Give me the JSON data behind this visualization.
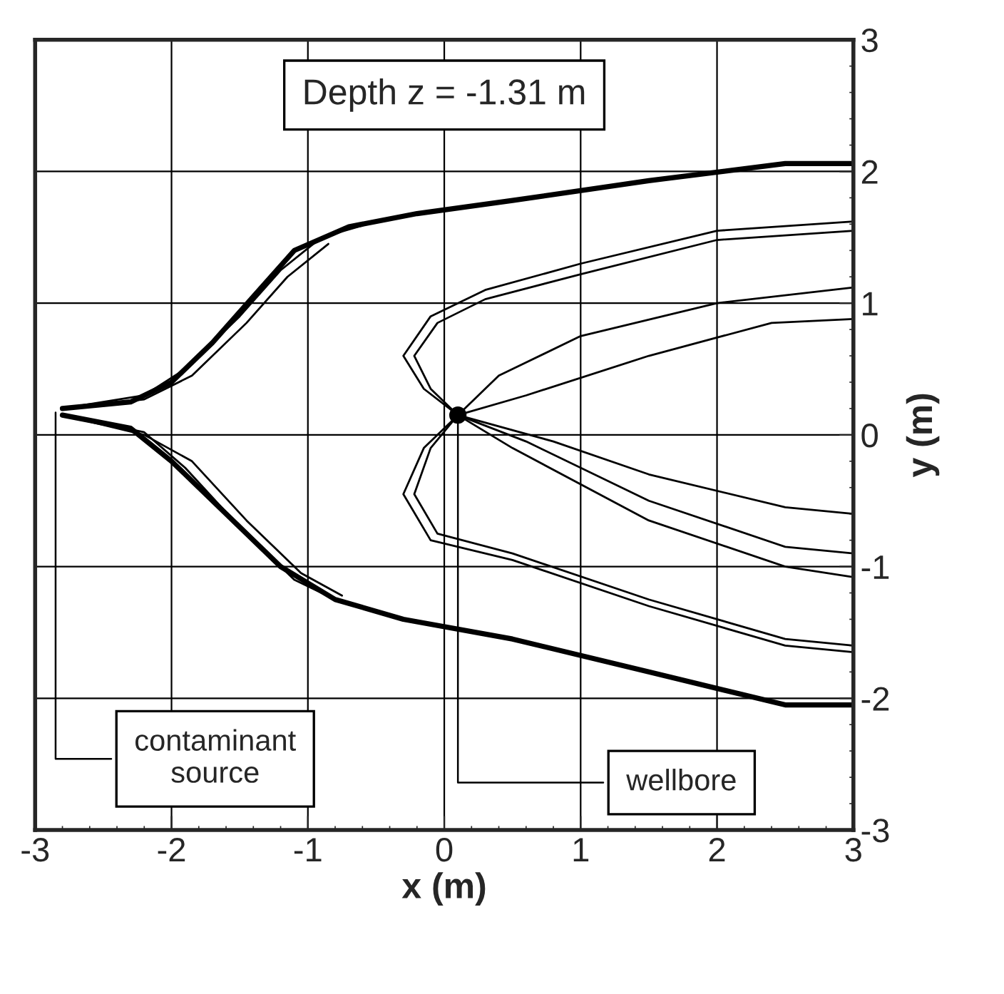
{
  "chart_data": {
    "type": "line",
    "xlabel": "x (m)",
    "ylabel": "y (m)",
    "xlim": [
      -3,
      3
    ],
    "ylim": [
      -3,
      3
    ],
    "xticks": [
      -3,
      -2,
      -1,
      0,
      1,
      2,
      3
    ],
    "yticks": [
      -3,
      -2,
      -1,
      0,
      1,
      2,
      3
    ],
    "grid": true,
    "legend": false,
    "marker": "none",
    "line_style": "solid",
    "series": [
      {
        "color": "#000000",
        "x": [
          -2.8,
          -2.3,
          -2.0,
          -1.7,
          -1.4,
          -1.1,
          -0.7,
          -0.2,
          0.5,
          1.5,
          2.5,
          3.0
        ],
        "values": [
          0.2,
          0.25,
          0.4,
          0.7,
          1.05,
          1.4,
          1.58,
          1.68,
          1.78,
          1.93,
          2.06,
          2.06
        ]
      },
      {
        "color": "#000000",
        "x": [
          -2.8,
          -2.3,
          -2.0,
          -1.6,
          -1.2,
          -0.8,
          -0.3,
          0.5,
          1.5,
          2.5,
          3.0
        ],
        "values": [
          0.15,
          0.05,
          -0.2,
          -0.6,
          -1.0,
          -1.25,
          -1.4,
          -1.55,
          -1.8,
          -2.05,
          -2.05
        ]
      },
      {
        "color": "#000000",
        "x": [
          -2.8,
          -2.2,
          -1.9,
          -1.5,
          -1.2,
          -0.9,
          -0.5
        ],
        "values": [
          0.2,
          0.3,
          0.5,
          0.9,
          1.25,
          1.5,
          1.62
        ]
      },
      {
        "color": "#000000",
        "x": [
          -2.8,
          -2.2,
          -1.85,
          -1.45,
          -1.15,
          -0.85
        ],
        "values": [
          0.2,
          0.27,
          0.45,
          0.85,
          1.2,
          1.45
        ]
      },
      {
        "color": "#000000",
        "x": [
          -2.8,
          -2.2,
          -1.9,
          -1.5,
          -1.1,
          -0.8
        ],
        "values": [
          0.15,
          0.02,
          -0.25,
          -0.7,
          -1.1,
          -1.25
        ]
      },
      {
        "color": "#000000",
        "x": [
          -2.8,
          -2.2,
          -1.85,
          -1.45,
          -1.05,
          -0.75
        ],
        "values": [
          0.15,
          0.0,
          -0.2,
          -0.65,
          -1.05,
          -1.22
        ]
      },
      {
        "color": "#000000",
        "x": [
          3.0,
          2.0,
          1.0,
          0.3,
          -0.1,
          -0.3,
          -0.15,
          0.1
        ],
        "values": [
          1.62,
          1.55,
          1.3,
          1.1,
          0.9,
          0.6,
          0.35,
          0.15
        ]
      },
      {
        "color": "#000000",
        "x": [
          3.0,
          2.0,
          1.0,
          0.3,
          -0.05,
          -0.22,
          -0.1,
          0.1
        ],
        "values": [
          1.55,
          1.48,
          1.22,
          1.03,
          0.85,
          0.6,
          0.35,
          0.15
        ]
      },
      {
        "color": "#000000",
        "x": [
          0.1,
          0.4,
          1.0,
          2.0,
          3.0
        ],
        "values": [
          0.15,
          0.45,
          0.75,
          1.0,
          1.12
        ]
      },
      {
        "color": "#000000",
        "x": [
          0.1,
          0.6,
          1.5,
          2.4,
          3.0
        ],
        "values": [
          0.15,
          0.3,
          0.6,
          0.85,
          0.88
        ]
      },
      {
        "color": "#000000",
        "x": [
          0.1,
          0.8,
          1.5,
          2.5,
          3.0
        ],
        "values": [
          0.15,
          -0.05,
          -0.3,
          -0.55,
          -0.6
        ]
      },
      {
        "color": "#000000",
        "x": [
          0.1,
          0.6,
          1.5,
          2.5,
          3.0
        ],
        "values": [
          0.15,
          -0.05,
          -0.5,
          -0.85,
          -0.9
        ]
      },
      {
        "color": "#000000",
        "x": [
          0.1,
          0.5,
          1.5,
          2.5,
          3.0
        ],
        "values": [
          0.15,
          -0.1,
          -0.65,
          -1.0,
          -1.08
        ]
      },
      {
        "color": "#000000",
        "x": [
          0.1,
          -0.15,
          -0.3,
          -0.1,
          0.5,
          1.5,
          2.5,
          3.0
        ],
        "values": [
          0.15,
          -0.1,
          -0.45,
          -0.8,
          -0.95,
          -1.3,
          -1.6,
          -1.65
        ]
      },
      {
        "color": "#000000",
        "x": [
          0.1,
          -0.1,
          -0.22,
          -0.05,
          0.5,
          1.5,
          2.5,
          3.0
        ],
        "values": [
          0.15,
          -0.1,
          -0.45,
          -0.75,
          -0.9,
          -1.25,
          -1.55,
          -1.6
        ]
      },
      {
        "type": "scatter",
        "marker": "circle",
        "color": "#000000",
        "x": [
          0.1
        ],
        "values": [
          0.15
        ]
      }
    ],
    "annotations": [
      "Depth z = -1.31 m",
      {
        "text": "contaminant\nsource",
        "x": -2.85,
        "y": 0.2
      },
      {
        "text": "wellbore",
        "x": 0.1,
        "y": 0.15
      }
    ]
  }
}
